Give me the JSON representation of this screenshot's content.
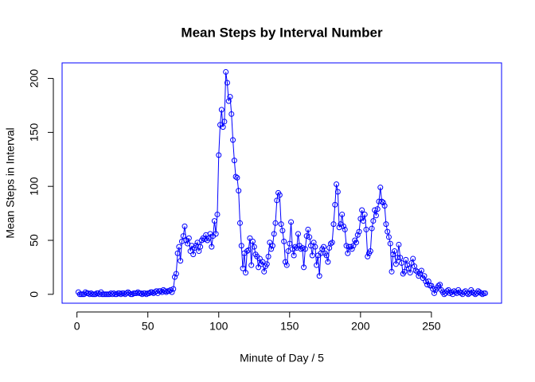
{
  "chart_data": {
    "type": "line",
    "title": "Mean Steps by Interval Number",
    "x_label": "Minute of Day / 5",
    "y_label": "Mean Steps in Interval",
    "x": [
      1,
      2,
      3,
      4,
      5,
      6,
      7,
      8,
      9,
      10,
      11,
      12,
      13,
      14,
      15,
      16,
      17,
      18,
      19,
      20,
      21,
      22,
      23,
      24,
      25,
      26,
      27,
      28,
      29,
      30,
      31,
      32,
      33,
      34,
      35,
      36,
      37,
      38,
      39,
      40,
      41,
      42,
      43,
      44,
      45,
      46,
      47,
      48,
      49,
      50,
      51,
      52,
      53,
      54,
      55,
      56,
      57,
      58,
      59,
      60,
      61,
      62,
      63,
      64,
      65,
      66,
      67,
      68,
      69,
      70,
      71,
      72,
      73,
      74,
      75,
      76,
      77,
      78,
      79,
      80,
      81,
      82,
      83,
      84,
      85,
      86,
      87,
      88,
      89,
      90,
      91,
      92,
      93,
      94,
      95,
      96,
      97,
      98,
      99,
      100,
      101,
      102,
      103,
      104,
      105,
      106,
      107,
      108,
      109,
      110,
      111,
      112,
      113,
      114,
      115,
      116,
      117,
      118,
      119,
      120,
      121,
      122,
      123,
      124,
      125,
      126,
      127,
      128,
      129,
      130,
      131,
      132,
      133,
      134,
      135,
      136,
      137,
      138,
      139,
      140,
      141,
      142,
      143,
      144,
      145,
      146,
      147,
      148,
      149,
      150,
      151,
      152,
      153,
      154,
      155,
      156,
      157,
      158,
      159,
      160,
      161,
      162,
      163,
      164,
      165,
      166,
      167,
      168,
      169,
      170,
      171,
      172,
      173,
      174,
      175,
      176,
      177,
      178,
      179,
      180,
      181,
      182,
      183,
      184,
      185,
      186,
      187,
      188,
      189,
      190,
      191,
      192,
      193,
      194,
      195,
      196,
      197,
      198,
      199,
      200,
      201,
      202,
      203,
      204,
      205,
      206,
      207,
      208,
      209,
      210,
      211,
      212,
      213,
      214,
      215,
      216,
      217,
      218,
      219,
      220,
      221,
      222,
      223,
      224,
      225,
      226,
      227,
      228,
      229,
      230,
      231,
      232,
      233,
      234,
      235,
      236,
      237,
      238,
      239,
      240,
      241,
      242,
      243,
      244,
      245,
      246,
      247,
      248,
      249,
      250,
      251,
      252,
      253,
      254,
      255,
      256,
      257,
      258,
      259,
      260,
      261,
      262,
      263,
      264,
      265,
      266,
      267,
      268,
      269,
      270,
      271,
      272,
      273,
      274,
      275,
      276,
      277,
      278,
      279,
      280,
      281,
      282,
      283,
      284,
      285,
      286,
      287,
      288
    ],
    "series": [
      {
        "color": "#0000ff",
        "values": [
          2,
          0,
          0,
          0,
          0,
          2,
          1,
          1,
          0,
          1,
          0,
          0,
          0,
          1,
          1,
          0,
          2,
          0,
          0,
          0,
          0,
          0,
          0,
          1,
          0,
          1,
          0,
          0,
          1,
          1,
          0,
          1,
          1,
          0,
          1,
          2,
          1,
          0,
          0,
          1,
          1,
          1,
          2,
          1,
          1,
          0,
          1,
          1,
          0,
          1,
          1,
          2,
          2,
          1,
          2,
          3,
          1,
          3,
          3,
          2,
          4,
          3,
          2,
          3,
          3,
          4,
          2,
          5,
          16,
          19,
          38,
          44,
          31,
          49,
          54,
          63,
          50,
          47,
          52,
          40,
          45,
          37,
          43,
          45,
          48,
          40,
          44,
          50,
          52,
          51,
          55,
          50,
          52,
          56,
          44,
          54,
          68,
          56,
          74,
          129,
          157,
          171,
          155,
          160,
          206,
          196,
          179,
          183,
          167,
          143,
          124,
          109,
          108,
          96,
          66,
          45,
          24,
          38,
          20,
          40,
          41,
          52,
          27,
          49,
          44,
          37,
          35,
          25,
          33,
          28,
          30,
          21,
          26,
          28,
          35,
          48,
          42,
          45,
          56,
          66,
          87,
          94,
          92,
          65,
          59,
          49,
          30,
          27,
          40,
          47,
          67,
          42,
          36,
          44,
          43,
          56,
          45,
          42,
          43,
          25,
          42,
          54,
          60,
          53,
          45,
          36,
          48,
          44,
          27,
          36,
          17,
          38,
          42,
          44,
          38,
          36,
          30,
          43,
          47,
          48,
          65,
          83,
          102,
          95,
          62,
          65,
          74,
          63,
          60,
          45,
          38,
          44,
          44,
          42,
          45,
          50,
          48,
          55,
          58,
          70,
          78,
          68,
          74,
          60,
          35,
          38,
          40,
          61,
          68,
          78,
          73,
          79,
          86,
          99,
          86,
          85,
          82,
          65,
          58,
          53,
          47,
          21,
          37,
          40,
          28,
          34,
          46,
          34,
          29,
          19,
          21,
          32,
          27,
          24,
          20,
          29,
          33,
          26,
          22,
          21,
          17,
          19,
          22,
          15,
          17,
          12,
          9,
          12,
          8,
          8,
          5,
          1,
          4,
          6,
          8,
          9,
          4,
          2,
          0,
          1,
          3,
          4,
          1,
          2,
          0,
          3,
          2,
          1,
          4,
          2,
          1,
          0,
          2,
          3,
          1,
          0,
          1,
          4,
          2,
          1,
          0,
          1,
          3,
          2,
          1,
          0,
          1,
          1
        ]
      }
    ],
    "xlim": [
      -10.48,
      299.48
    ],
    "ylim": [
      -8.25,
      214.42
    ],
    "xticks": [
      0,
      50,
      100,
      150,
      200,
      250
    ],
    "yticks": [
      0,
      50,
      100,
      150,
      200
    ],
    "box_color": "#0000ff"
  }
}
